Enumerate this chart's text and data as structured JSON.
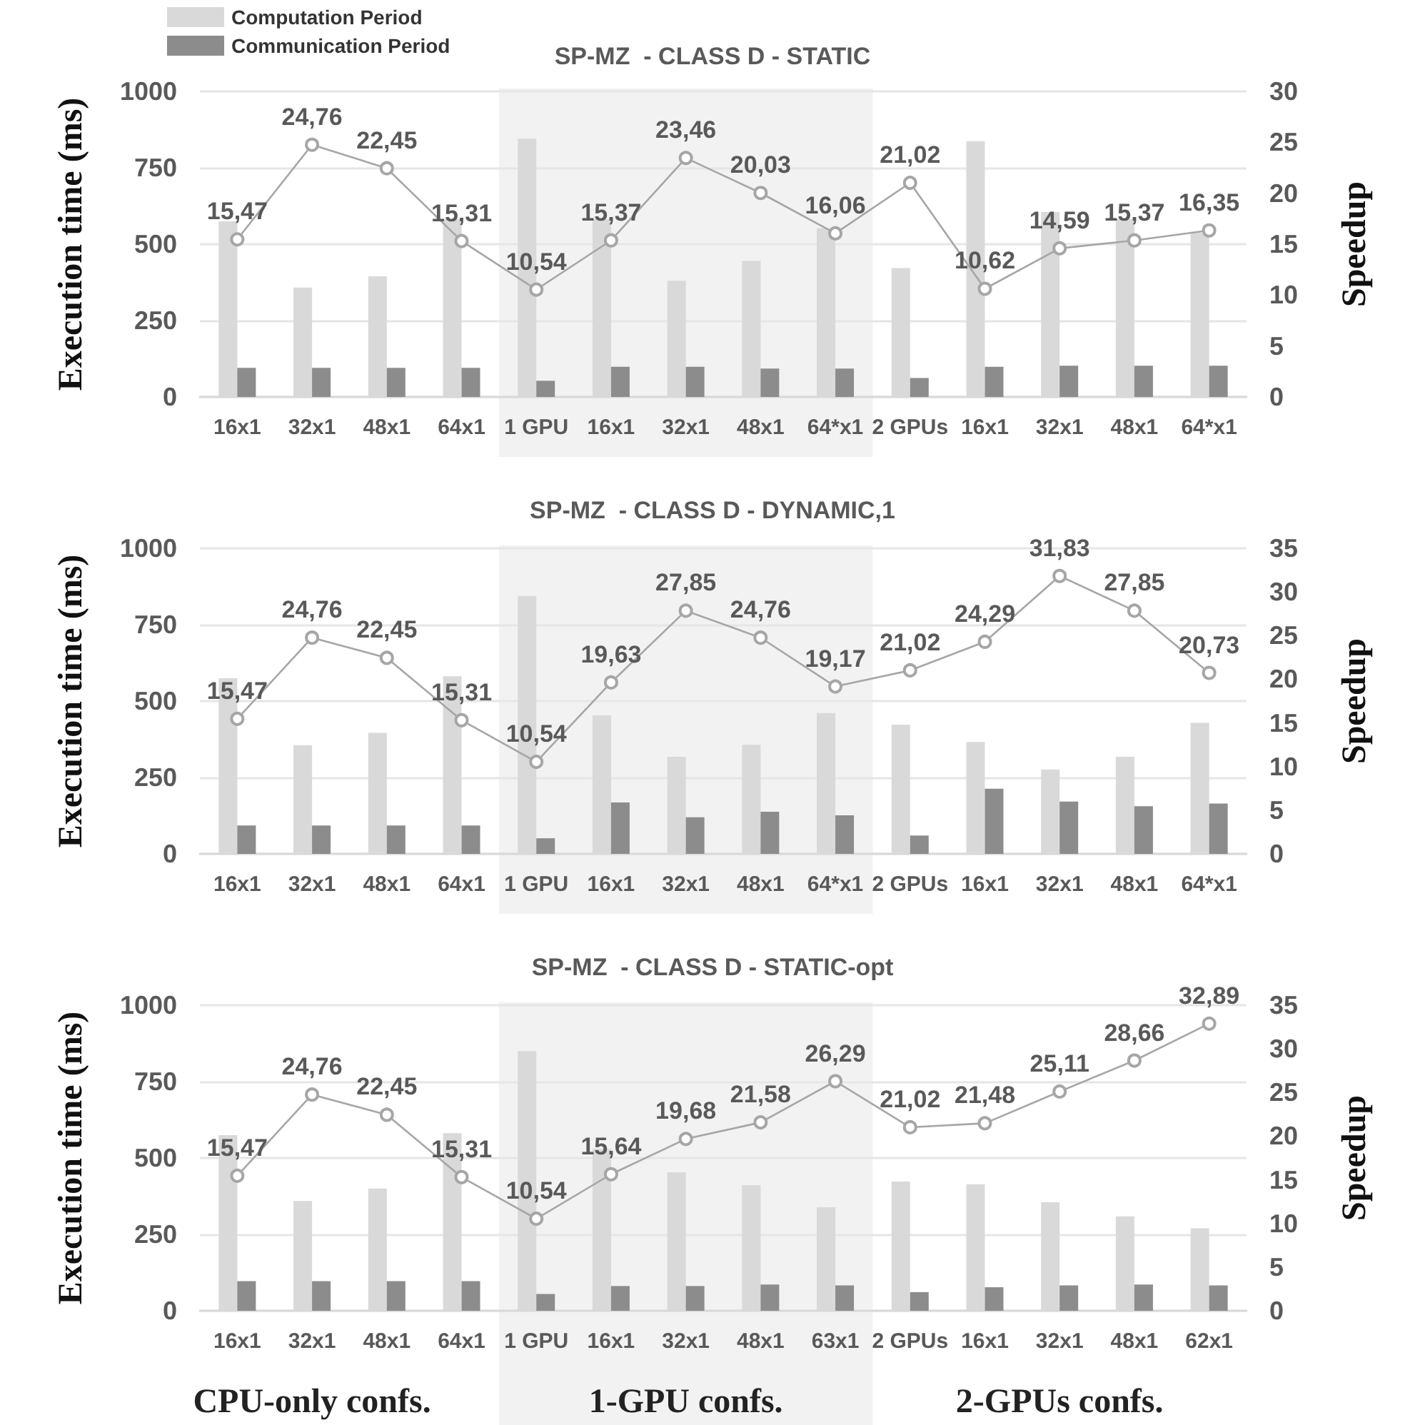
{
  "chart_data": [
    {
      "type": "bar",
      "title": "SP-MZ  - CLASS D - STATIC",
      "ylabel": "Execution time (ms)",
      "y2label": "Speedup",
      "categories": [
        "16x1",
        "32x1",
        "48x1",
        "64x1",
        "1 GPU",
        "16x1",
        "32x1",
        "48x1",
        "64*x1",
        "2 GPUs",
        "16x1",
        "32x1",
        "48x1",
        "64*x1"
      ],
      "series": [
        {
          "name": "Computation Period",
          "color": "#d9d9d9",
          "values": [
            575,
            358,
            395,
            582,
            845,
            582,
            380,
            445,
            552,
            422,
            837,
            605,
            582,
            537
          ]
        },
        {
          "name": "Communication Period",
          "color": "#8c8c8c",
          "values": [
            95,
            95,
            95,
            95,
            53,
            99,
            99,
            93,
            93,
            62,
            99,
            102,
            102,
            102
          ]
        },
        {
          "type": "line",
          "axis": "y2",
          "color": "#a6a6a6",
          "values": [
            15.47,
            24.76,
            22.45,
            15.31,
            10.54,
            15.37,
            23.46,
            20.03,
            16.06,
            21.02,
            10.62,
            14.59,
            15.37,
            16.35
          ],
          "value_labels": [
            "15,47",
            "24,76",
            "22,45",
            "15,31",
            "10,54",
            "15,37",
            "23,46",
            "20,03",
            "16,06",
            "21,02",
            "10,62",
            "14,59",
            "15,37",
            "16,35"
          ]
        }
      ],
      "ylim": [
        0,
        1000
      ],
      "yticks": [
        0,
        250,
        500,
        750,
        1000
      ],
      "y2lim": [
        0,
        30
      ],
      "y2ticks": [
        0,
        5,
        10,
        15,
        20,
        25,
        30
      ],
      "bands": [
        {
          "axis": "x",
          "from": "1 GPU",
          "to": "64*x1",
          "color": "#f2f2f2"
        }
      ],
      "grid": "y",
      "legend": "top left",
      "marker": "circle"
    },
    {
      "type": "bar",
      "title": "SP-MZ  - CLASS D - DYNAMIC,1",
      "ylabel": "Execution time (ms)",
      "y2label": "Speedup",
      "categories": [
        "16x1",
        "32x1",
        "48x1",
        "64x1",
        "1 GPU",
        "16x1",
        "32x1",
        "48x1",
        "64*x1",
        "2 GPUs",
        "16x1",
        "32x1",
        "48x1",
        "64*x1"
      ],
      "series": [
        {
          "color": "#d9d9d9",
          "values": [
            575,
            356,
            396,
            581,
            844,
            453,
            318,
            357,
            461,
            423,
            366,
            276,
            318,
            429
          ]
        },
        {
          "color": "#8c8c8c",
          "values": [
            93,
            93,
            93,
            93,
            51,
            168,
            120,
            138,
            126,
            60,
            213,
            171,
            156,
            165
          ]
        },
        {
          "type": "line",
          "axis": "y2",
          "color": "#a6a6a6",
          "values": [
            15.47,
            24.76,
            22.45,
            15.31,
            10.54,
            19.63,
            27.85,
            24.76,
            19.17,
            21.02,
            24.29,
            31.83,
            27.85,
            20.73
          ],
          "value_labels": [
            "15,47",
            "24,76",
            "22,45",
            "15,31",
            "10,54",
            "19,63",
            "27,85",
            "24,76",
            "19,17",
            "21,02",
            "24,29",
            "31,83",
            "27,85",
            "20,73"
          ]
        }
      ],
      "ylim": [
        0,
        1000
      ],
      "yticks": [
        0,
        250,
        500,
        750,
        1000
      ],
      "y2lim": [
        0,
        35
      ],
      "y2ticks": [
        0,
        5,
        10,
        15,
        20,
        25,
        30,
        35
      ],
      "bands": [
        {
          "axis": "x",
          "from": "1 GPU",
          "to": "64*x1",
          "color": "#f2f2f2"
        }
      ],
      "grid": "y",
      "marker": "circle"
    },
    {
      "type": "bar",
      "title": "SP-MZ  - CLASS D - STATIC-opt",
      "ylabel": "Execution time (ms)",
      "y2label": "Speedup",
      "categories": [
        "16x1",
        "32x1",
        "48x1",
        "64x1",
        "1 GPU",
        "16x1",
        "32x1",
        "48x1",
        "63x1",
        "2 GPUs",
        "16x1",
        "32x1",
        "48x1",
        "62x1"
      ],
      "series": [
        {
          "color": "#d9d9d9",
          "values": [
            575,
            359,
            400,
            581,
            850,
            530,
            453,
            411,
            339,
            423,
            414,
            355,
            309,
            270
          ]
        },
        {
          "color": "#8c8c8c",
          "values": [
            97,
            97,
            97,
            97,
            55,
            81,
            81,
            86,
            83,
            61,
            77,
            83,
            86,
            83
          ]
        },
        {
          "type": "line",
          "axis": "y2",
          "color": "#a6a6a6",
          "values": [
            15.47,
            24.76,
            22.45,
            15.31,
            10.54,
            15.64,
            19.68,
            21.58,
            26.29,
            21.02,
            21.48,
            25.11,
            28.66,
            32.89
          ],
          "value_labels": [
            "15,47",
            "24,76",
            "22,45",
            "15,31",
            "10,54",
            "15,64",
            "19,68",
            "21,58",
            "26,29",
            "21,02",
            "21,48",
            "25,11",
            "28,66",
            "32,89"
          ]
        }
      ],
      "ylim": [
        0,
        1000
      ],
      "yticks": [
        0,
        250,
        500,
        750,
        1000
      ],
      "y2lim": [
        0,
        35
      ],
      "y2ticks": [
        0,
        5,
        10,
        15,
        20,
        25,
        30,
        35
      ],
      "bands": [
        {
          "axis": "x",
          "from": "1 GPU",
          "to": "63x1",
          "color": "#f2f2f2"
        }
      ],
      "annotations": [
        "CPU-only confs.",
        "1-GPU confs.",
        "2-GPUs confs."
      ],
      "grid": "y",
      "marker": "circle"
    }
  ]
}
